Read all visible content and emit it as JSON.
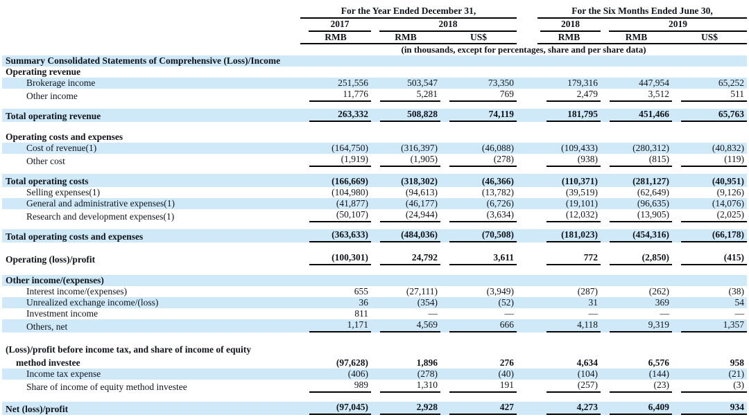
{
  "header": {
    "groups": [
      {
        "label": "For the Year Ended December 31,"
      },
      {
        "label": "For the Six Months Ended June 30,"
      }
    ],
    "years": [
      {
        "label": "2017"
      },
      {
        "label": "2018"
      },
      {
        "label": "2018"
      },
      {
        "label": "2019"
      }
    ],
    "units": [
      "RMB",
      "RMB",
      "US$",
      "RMB",
      "RMB",
      "US$"
    ],
    "note": "(in thousands, except for percentages, share and per share data)"
  },
  "rows": [
    {
      "type": "title",
      "label": "Summary Consolidated Statements of Comprehensive (Loss)/Income",
      "highlight": true
    },
    {
      "type": "section",
      "label": "Operating revenue"
    },
    {
      "type": "item",
      "label": "Brokerage income",
      "indent": 1,
      "highlight": true,
      "values": [
        "251,556",
        "503,547",
        "73,350",
        "179,316",
        "447,954",
        "65,252"
      ]
    },
    {
      "type": "item",
      "label": "Other income",
      "indent": 1,
      "underline": true,
      "values": [
        "11,776",
        "5,281",
        "769",
        "2,479",
        "3,512",
        "511"
      ]
    },
    {
      "type": "spacer",
      "h": 10
    },
    {
      "type": "total",
      "label": "Total operating revenue",
      "highlight": true,
      "underline": true,
      "values": [
        "263,332",
        "508,828",
        "74,119",
        "181,795",
        "451,466",
        "65,763"
      ]
    },
    {
      "type": "spacer",
      "h": 14
    },
    {
      "type": "section",
      "label": "Operating costs and expenses"
    },
    {
      "type": "item",
      "label": "Cost of revenue(1)",
      "indent": 1,
      "highlight": true,
      "values": [
        "(164,750)",
        "(316,397)",
        "(46,088)",
        "(109,433)",
        "(280,312)",
        "(40,832)"
      ]
    },
    {
      "type": "item",
      "label": "Other cost",
      "indent": 1,
      "underline": true,
      "values": [
        "(1,919)",
        "(1,905)",
        "(278)",
        "(938)",
        "(815)",
        "(119)"
      ]
    },
    {
      "type": "spacer",
      "h": 10
    },
    {
      "type": "total",
      "label": "Total operating costs",
      "highlight": true,
      "values": [
        "(166,669)",
        "(318,302)",
        "(46,366)",
        "(110,371)",
        "(281,127)",
        "(40,951)"
      ]
    },
    {
      "type": "item",
      "label": "Selling expenses(1)",
      "indent": 1,
      "values": [
        "(104,980)",
        "(94,613)",
        "(13,782)",
        "(39,519)",
        "(62,649)",
        "(9,126)"
      ]
    },
    {
      "type": "item",
      "label": "General and administrative expenses(1)",
      "indent": 1,
      "highlight": true,
      "values": [
        "(41,877)",
        "(46,177)",
        "(6,726)",
        "(19,101)",
        "(96,635)",
        "(14,076)"
      ]
    },
    {
      "type": "item",
      "label": "Research and development expenses(1)",
      "indent": 1,
      "underline": true,
      "values": [
        "(50,107)",
        "(24,944)",
        "(3,634)",
        "(12,032)",
        "(13,905)",
        "(2,025)"
      ]
    },
    {
      "type": "spacer",
      "h": 10
    },
    {
      "type": "total",
      "label": "Total operating costs and expenses",
      "highlight": true,
      "underline": true,
      "values": [
        "(363,633)",
        "(484,036)",
        "(70,508)",
        "(181,023)",
        "(454,316)",
        "(66,178)"
      ]
    },
    {
      "type": "spacer",
      "h": 14
    },
    {
      "type": "total",
      "label": "Operating (loss)/profit",
      "underline": true,
      "values": [
        "(100,301)",
        "24,792",
        "3,611",
        "772",
        "(2,850)",
        "(415)"
      ]
    },
    {
      "type": "spacer",
      "h": 14
    },
    {
      "type": "section",
      "label": "Other income/(expenses)",
      "highlight": true
    },
    {
      "type": "item",
      "label": "Interest income/(expenses)",
      "indent": 1,
      "values": [
        "655",
        "(27,111)",
        "(3,949)",
        "(287)",
        "(262)",
        "(38)"
      ]
    },
    {
      "type": "item",
      "label": "Unrealized exchange income/(loss)",
      "indent": 1,
      "highlight": true,
      "values": [
        "36",
        "(354)",
        "(52)",
        "31",
        "369",
        "54"
      ]
    },
    {
      "type": "item",
      "label": "Investment income",
      "indent": 1,
      "values": [
        "811",
        "—",
        "—",
        "—",
        "—",
        "—"
      ]
    },
    {
      "type": "item",
      "label": "Others, net",
      "indent": 1,
      "highlight": true,
      "underline": true,
      "values": [
        "1,171",
        "4,569",
        "666",
        "4,118",
        "9,319",
        "1,357"
      ]
    },
    {
      "type": "spacer",
      "h": 14
    },
    {
      "type": "total",
      "label": "(Loss)/profit before income tax, and share of income of equity"
    },
    {
      "type": "total",
      "label": "method investee",
      "indent": 0.5,
      "values": [
        "(97,628)",
        "1,896",
        "276",
        "4,634",
        "6,576",
        "958"
      ]
    },
    {
      "type": "item",
      "label": "Income tax expense",
      "indent": 1,
      "highlight": true,
      "values": [
        "(406)",
        "(278)",
        "(40)",
        "(104)",
        "(144)",
        "(21)"
      ]
    },
    {
      "type": "item",
      "label": "Share of income of equity method investee",
      "indent": 1,
      "underline": true,
      "values": [
        "989",
        "1,310",
        "191",
        "(257)",
        "(23)",
        "(3)"
      ]
    },
    {
      "type": "spacer",
      "h": 13
    },
    {
      "type": "total",
      "label": "Net (loss)/profit",
      "highlight": true,
      "underline": true,
      "values": [
        "(97,045)",
        "2,928",
        "427",
        "4,273",
        "6,409",
        "934"
      ]
    }
  ]
}
